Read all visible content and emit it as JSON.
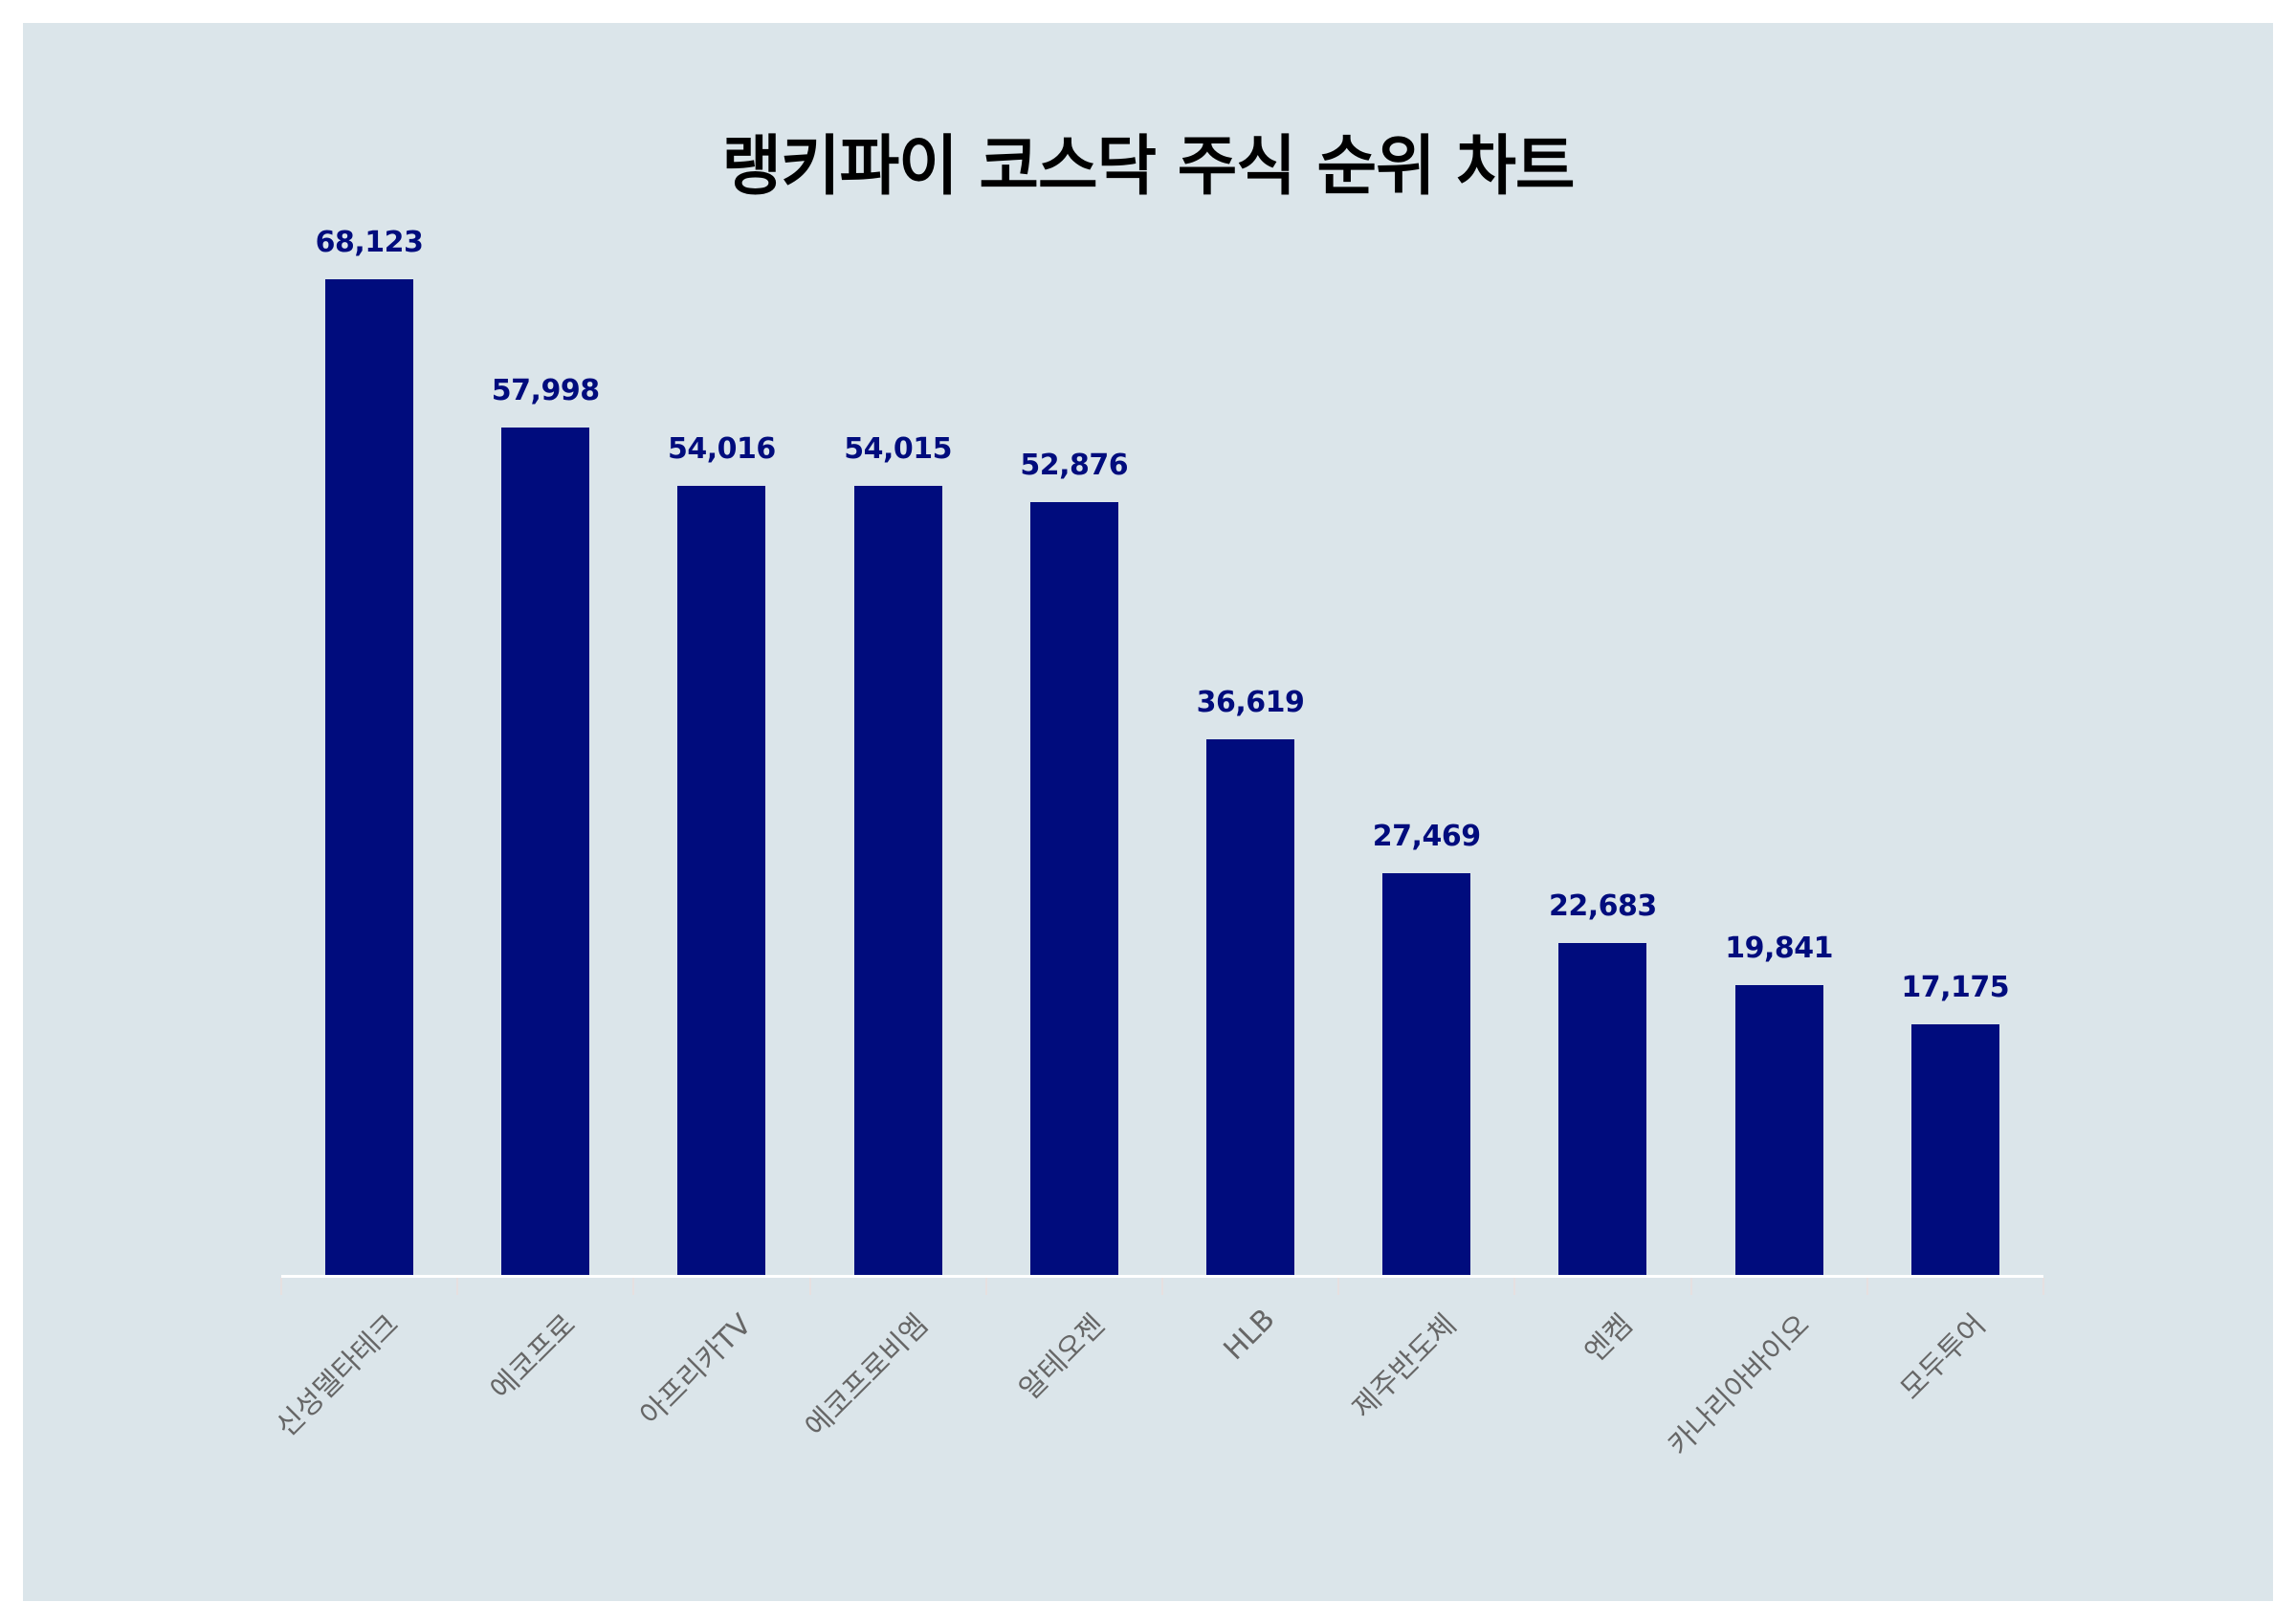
{
  "chart": {
    "title": "랭키파이 코스닥 주식 순위 차트",
    "bar_color": "#000c7d",
    "label_color": "#000c7d",
    "axis_label_color": "#666666",
    "background_color": "#dbe5ea"
  },
  "chart_data": {
    "type": "bar",
    "title": "랭키파이 코스닥 주식 순위 차트",
    "xlabel": "",
    "ylabel": "",
    "categories": [
      "신성델타테크",
      "에코프로",
      "아프리카TV",
      "에코프로비엠",
      "알테오젠",
      "HLB",
      "제주반도체",
      "엔켐",
      "카나리아바이오",
      "모두투어"
    ],
    "values": [
      68123,
      57998,
      54016,
      54015,
      52876,
      36619,
      27469,
      22683,
      19841,
      17175
    ],
    "value_labels": [
      "68,123",
      "57,998",
      "54,016",
      "54,015",
      "52,876",
      "36,619",
      "27,469",
      "22,683",
      "19,841",
      "17,175"
    ],
    "ylim": [
      0,
      71000
    ],
    "grid": false,
    "legend": "none",
    "y_axis_visible": false
  }
}
